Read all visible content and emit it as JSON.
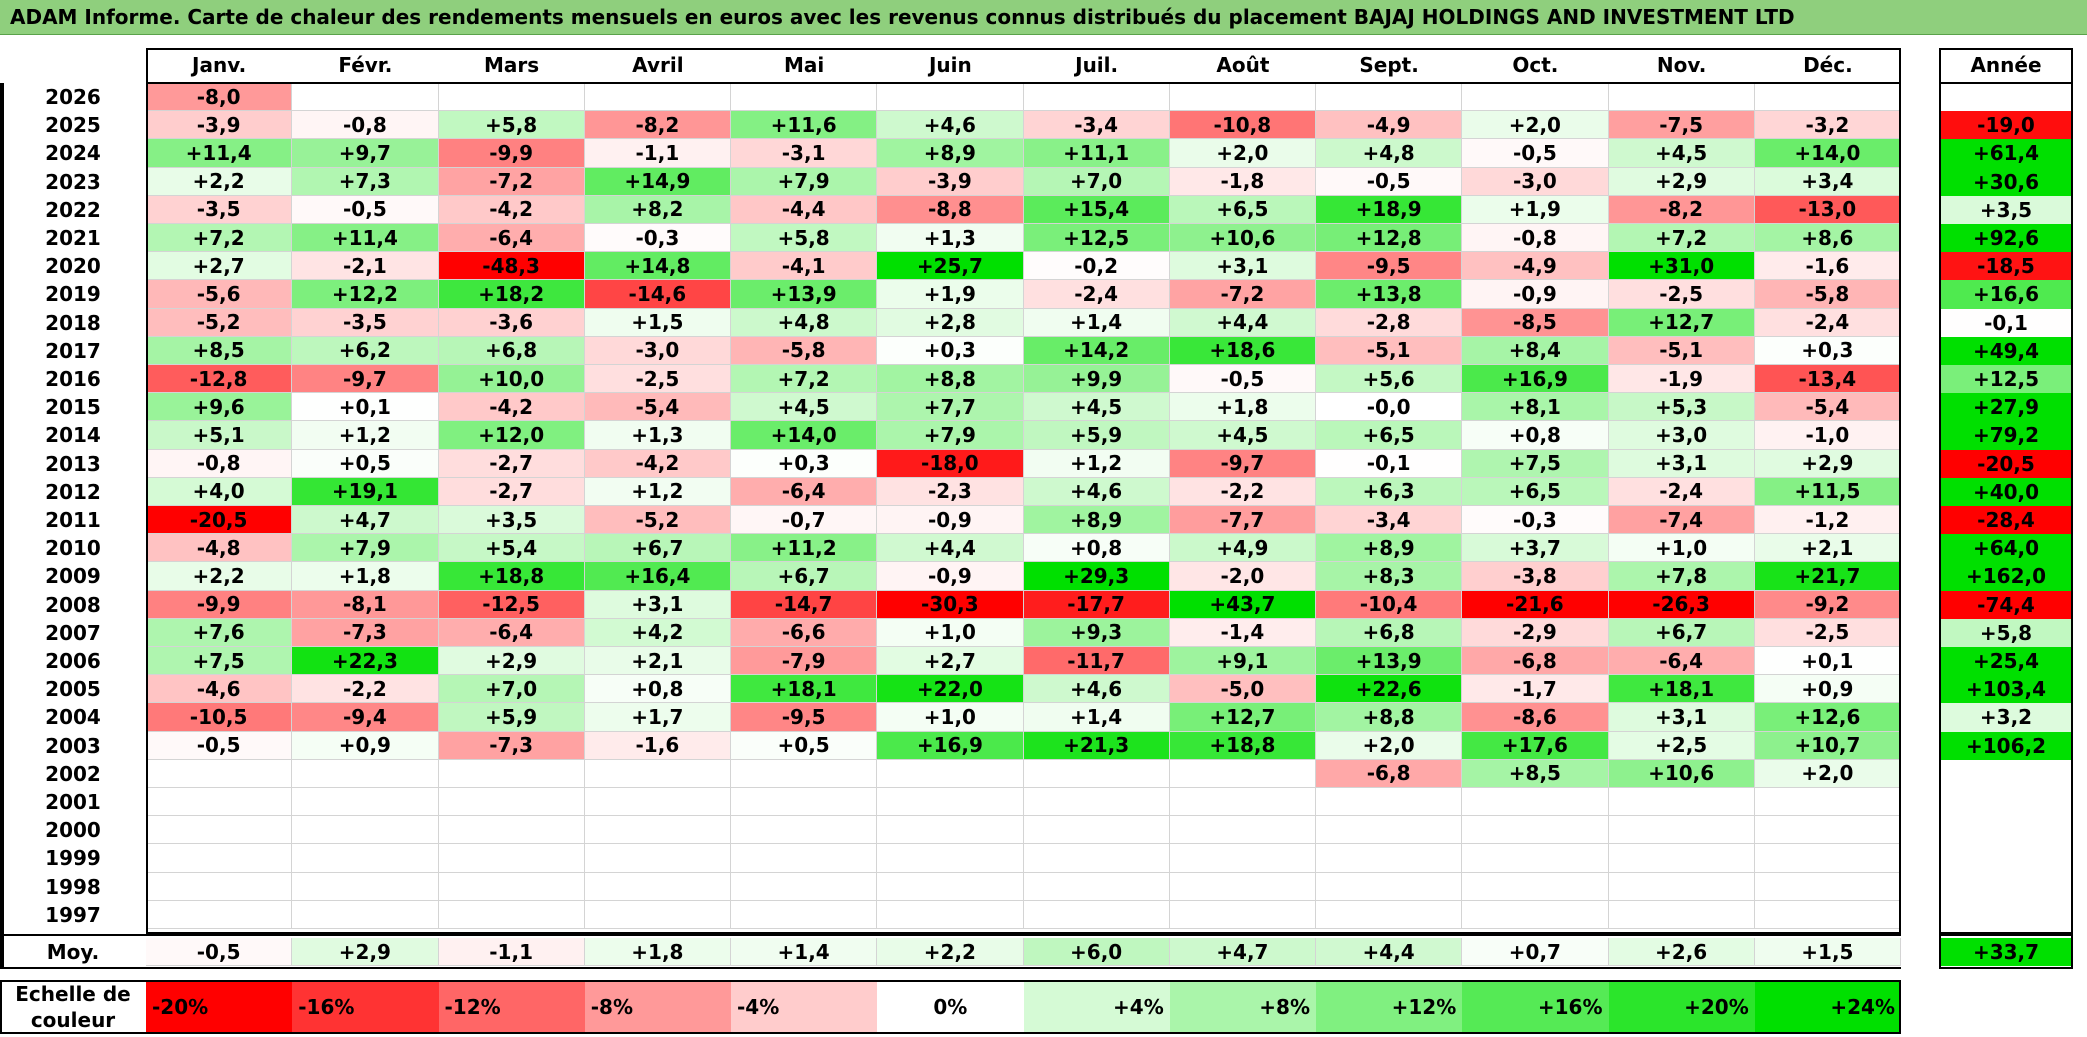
{
  "title": "ADAM Informe. Carte de chaleur des rendements mensuels en euros avec les revenus connus distribués du placement BAJAJ HOLDINGS AND INVESTMENT LTD",
  "chart_data": {
    "type": "heatmap",
    "columns": [
      "Janv.",
      "Févr.",
      "Mars",
      "Avril",
      "Mai",
      "Juin",
      "Juil.",
      "Août",
      "Sept.",
      "Oct.",
      "Nov.",
      "Déc."
    ],
    "year_column_label": "Année",
    "rows": [
      {
        "year": "2026",
        "values": [
          "-8,0",
          "",
          "",
          "",
          "",
          "",
          "",
          "",
          "",
          "",
          "",
          ""
        ],
        "annual": ""
      },
      {
        "year": "2025",
        "values": [
          "-3,9",
          "-0,8",
          "+5,8",
          "-8,2",
          "+11,6",
          "+4,6",
          "-3,4",
          "-10,8",
          "-4,9",
          "+2,0",
          "-7,5",
          "-3,2"
        ],
        "annual": "-19,0"
      },
      {
        "year": "2024",
        "values": [
          "+11,4",
          "+9,7",
          "-9,9",
          "-1,1",
          "-3,1",
          "+8,9",
          "+11,1",
          "+2,0",
          "+4,8",
          "-0,5",
          "+4,5",
          "+14,0"
        ],
        "annual": "+61,4"
      },
      {
        "year": "2023",
        "values": [
          "+2,2",
          "+7,3",
          "-7,2",
          "+14,9",
          "+7,9",
          "-3,9",
          "+7,0",
          "-1,8",
          "-0,5",
          "-3,0",
          "+2,9",
          "+3,4"
        ],
        "annual": "+30,6"
      },
      {
        "year": "2022",
        "values": [
          "-3,5",
          "-0,5",
          "-4,2",
          "+8,2",
          "-4,4",
          "-8,8",
          "+15,4",
          "+6,5",
          "+18,9",
          "+1,9",
          "-8,2",
          "-13,0"
        ],
        "annual": "+3,5"
      },
      {
        "year": "2021",
        "values": [
          "+7,2",
          "+11,4",
          "-6,4",
          "-0,3",
          "+5,8",
          "+1,3",
          "+12,5",
          "+10,6",
          "+12,8",
          "-0,8",
          "+7,2",
          "+8,6"
        ],
        "annual": "+92,6"
      },
      {
        "year": "2020",
        "values": [
          "+2,7",
          "-2,1",
          "-48,3",
          "+14,8",
          "-4,1",
          "+25,7",
          "-0,2",
          "+3,1",
          "-9,5",
          "-4,9",
          "+31,0",
          "-1,6"
        ],
        "annual": "-18,5"
      },
      {
        "year": "2019",
        "values": [
          "-5,6",
          "+12,2",
          "+18,2",
          "-14,6",
          "+13,9",
          "+1,9",
          "-2,4",
          "-7,2",
          "+13,8",
          "-0,9",
          "-2,5",
          "-5,8"
        ],
        "annual": "+16,6"
      },
      {
        "year": "2018",
        "values": [
          "-5,2",
          "-3,5",
          "-3,6",
          "+1,5",
          "+4,8",
          "+2,8",
          "+1,4",
          "+4,4",
          "-2,8",
          "-8,5",
          "+12,7",
          "-2,4"
        ],
        "annual": "-0,1"
      },
      {
        "year": "2017",
        "values": [
          "+8,5",
          "+6,2",
          "+6,8",
          "-3,0",
          "-5,8",
          "+0,3",
          "+14,2",
          "+18,6",
          "-5,1",
          "+8,4",
          "-5,1",
          "+0,3"
        ],
        "annual": "+49,4"
      },
      {
        "year": "2016",
        "values": [
          "-12,8",
          "-9,7",
          "+10,0",
          "-2,5",
          "+7,2",
          "+8,8",
          "+9,9",
          "-0,5",
          "+5,6",
          "+16,9",
          "-1,9",
          "-13,4"
        ],
        "annual": "+12,5"
      },
      {
        "year": "2015",
        "values": [
          "+9,6",
          "+0,1",
          "-4,2",
          "-5,4",
          "+4,5",
          "+7,7",
          "+4,5",
          "+1,8",
          "-0,0",
          "+8,1",
          "+5,3",
          "-5,4"
        ],
        "annual": "+27,9"
      },
      {
        "year": "2014",
        "values": [
          "+5,1",
          "+1,2",
          "+12,0",
          "+1,3",
          "+14,0",
          "+7,9",
          "+5,9",
          "+4,5",
          "+6,5",
          "+0,8",
          "+3,0",
          "-1,0"
        ],
        "annual": "+79,2"
      },
      {
        "year": "2013",
        "values": [
          "-0,8",
          "+0,5",
          "-2,7",
          "-4,2",
          "+0,3",
          "-18,0",
          "+1,2",
          "-9,7",
          "-0,1",
          "+7,5",
          "+3,1",
          "+2,9"
        ],
        "annual": "-20,5"
      },
      {
        "year": "2012",
        "values": [
          "+4,0",
          "+19,1",
          "-2,7",
          "+1,2",
          "-6,4",
          "-2,3",
          "+4,6",
          "-2,2",
          "+6,3",
          "+6,5",
          "-2,4",
          "+11,5"
        ],
        "annual": "+40,0"
      },
      {
        "year": "2011",
        "values": [
          "-20,5",
          "+4,7",
          "+3,5",
          "-5,2",
          "-0,7",
          "-0,9",
          "+8,9",
          "-7,7",
          "-3,4",
          "-0,3",
          "-7,4",
          "-1,2"
        ],
        "annual": "-28,4"
      },
      {
        "year": "2010",
        "values": [
          "-4,8",
          "+7,9",
          "+5,4",
          "+6,7",
          "+11,2",
          "+4,4",
          "+0,8",
          "+4,9",
          "+8,9",
          "+3,7",
          "+1,0",
          "+2,1"
        ],
        "annual": "+64,0"
      },
      {
        "year": "2009",
        "values": [
          "+2,2",
          "+1,8",
          "+18,8",
          "+16,4",
          "+6,7",
          "-0,9",
          "+29,3",
          "-2,0",
          "+8,3",
          "-3,8",
          "+7,8",
          "+21,7"
        ],
        "annual": "+162,0"
      },
      {
        "year": "2008",
        "values": [
          "-9,9",
          "-8,1",
          "-12,5",
          "+3,1",
          "-14,7",
          "-30,3",
          "-17,7",
          "+43,7",
          "-10,4",
          "-21,6",
          "-26,3",
          "-9,2"
        ],
        "annual": "-74,4"
      },
      {
        "year": "2007",
        "values": [
          "+7,6",
          "-7,3",
          "-6,4",
          "+4,2",
          "-6,6",
          "+1,0",
          "+9,3",
          "-1,4",
          "+6,8",
          "-2,9",
          "+6,7",
          "-2,5"
        ],
        "annual": "+5,8"
      },
      {
        "year": "2006",
        "values": [
          "+7,5",
          "+22,3",
          "+2,9",
          "+2,1",
          "-7,9",
          "+2,7",
          "-11,7",
          "+9,1",
          "+13,9",
          "-6,8",
          "-6,4",
          "+0,1"
        ],
        "annual": "+25,4"
      },
      {
        "year": "2005",
        "values": [
          "-4,6",
          "-2,2",
          "+7,0",
          "+0,8",
          "+18,1",
          "+22,0",
          "+4,6",
          "-5,0",
          "+22,6",
          "-1,7",
          "+18,1",
          "+0,9"
        ],
        "annual": "+103,4"
      },
      {
        "year": "2004",
        "values": [
          "-10,5",
          "-9,4",
          "+5,9",
          "+1,7",
          "-9,5",
          "+1,0",
          "+1,4",
          "+12,7",
          "+8,8",
          "-8,6",
          "+3,1",
          "+12,6"
        ],
        "annual": "+3,2"
      },
      {
        "year": "2003",
        "values": [
          "-0,5",
          "+0,9",
          "-7,3",
          "-1,6",
          "+0,5",
          "+16,9",
          "+21,3",
          "+18,8",
          "+2,0",
          "+17,6",
          "+2,5",
          "+10,7"
        ],
        "annual": "+106,2"
      },
      {
        "year": "2002",
        "values": [
          "",
          "",
          "",
          "",
          "",
          "",
          "",
          "",
          "-6,8",
          "+8,5",
          "+10,6",
          "+2,0"
        ],
        "annual": ""
      },
      {
        "year": "2001",
        "values": [
          "",
          "",
          "",
          "",
          "",
          "",
          "",
          "",
          "",
          "",
          "",
          ""
        ],
        "annual": ""
      },
      {
        "year": "2000",
        "values": [
          "",
          "",
          "",
          "",
          "",
          "",
          "",
          "",
          "",
          "",
          "",
          ""
        ],
        "annual": ""
      },
      {
        "year": "1999",
        "values": [
          "",
          "",
          "",
          "",
          "",
          "",
          "",
          "",
          "",
          "",
          "",
          ""
        ],
        "annual": ""
      },
      {
        "year": "1998",
        "values": [
          "",
          "",
          "",
          "",
          "",
          "",
          "",
          "",
          "",
          "",
          "",
          ""
        ],
        "annual": ""
      },
      {
        "year": "1997",
        "values": [
          "",
          "",
          "",
          "",
          "",
          "",
          "",
          "",
          "",
          "",
          "",
          ""
        ],
        "annual": ""
      }
    ],
    "average": {
      "label": "Moy.",
      "values": [
        "-0,5",
        "+2,9",
        "-1,1",
        "+1,8",
        "+1,4",
        "+2,2",
        "+6,0",
        "+4,7",
        "+4,4",
        "+0,7",
        "+2,6",
        "+1,5"
      ],
      "annual": "+33,7"
    },
    "color_scale": {
      "label_line1": "Echelle de",
      "label_line2": "couleur",
      "stops": [
        "-20%",
        "-16%",
        "-12%",
        "-8%",
        "-4%",
        "0%",
        "+4%",
        "+8%",
        "+12%",
        "+16%",
        "+20%",
        "+24%"
      ],
      "negative_color": "#ff0000",
      "positive_color": "#00e000",
      "neutral_color": "#ffffff"
    }
  }
}
